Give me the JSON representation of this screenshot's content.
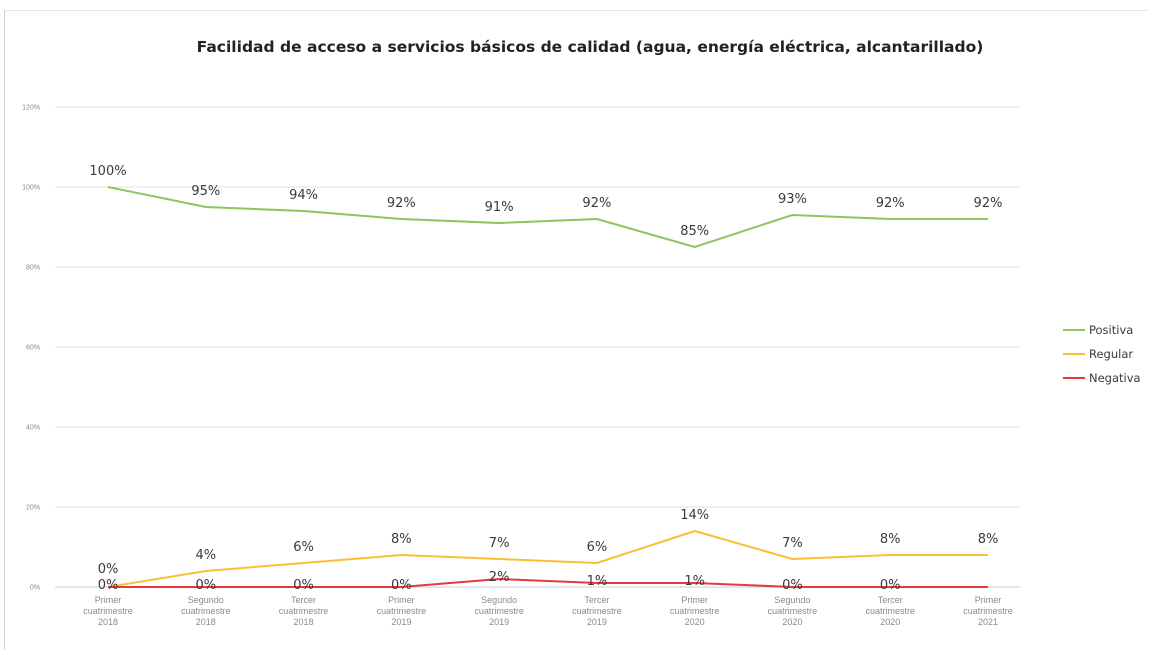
{
  "chart_data": {
    "type": "line",
    "title": "Facilidad de acceso a servicios básicos de calidad (agua, energía eléctrica, alcantarillado)",
    "categories": [
      [
        "Primer",
        "cuatrimestre",
        "2018"
      ],
      [
        "Segundo",
        "cuatrimestre",
        "2018"
      ],
      [
        "Tercer",
        "cuatrimestre",
        "2018"
      ],
      [
        "Primer",
        "cuatrimestre",
        "2019"
      ],
      [
        "Segundo",
        "cuatrimestre",
        "2019"
      ],
      [
        "Tercer",
        "cuatrimestre",
        "2019"
      ],
      [
        "Primer",
        "cuatrimestre",
        "2020"
      ],
      [
        "Segundo",
        "cuatrimestre",
        "2020"
      ],
      [
        "Tercer",
        "cuatrimestre",
        "2020"
      ],
      [
        "Primer",
        "cuatrimestre",
        "2021"
      ]
    ],
    "ylim": [
      0,
      120
    ],
    "yticks": [
      0,
      20,
      40,
      60,
      80,
      100,
      120
    ],
    "ytick_labels": [
      "0%",
      "20%",
      "40%",
      "60%",
      "80%",
      "100%",
      "120%"
    ],
    "grid": true,
    "legend_position": "right",
    "series": [
      {
        "name": "Positiva",
        "color": "#8dc65a",
        "values": [
          100,
          95,
          94,
          92,
          91,
          92,
          85,
          93,
          92,
          92
        ],
        "labels": [
          "100%",
          "95%",
          "94%",
          "92%",
          "91%",
          "92%",
          "85%",
          "93%",
          "92%",
          "92%"
        ]
      },
      {
        "name": "Regular",
        "color": "#f8c033",
        "values": [
          0,
          4,
          6,
          8,
          7,
          6,
          14,
          7,
          8,
          8
        ],
        "labels": [
          "0%",
          "4%",
          "6%",
          "8%",
          "7%",
          "6%",
          "14%",
          "7%",
          "8%",
          "8%"
        ]
      },
      {
        "name": "Negativa",
        "color": "#e8383d",
        "values": [
          0,
          0,
          0,
          0,
          2,
          1,
          1,
          0,
          0,
          0
        ],
        "labels": [
          "0%",
          "0%",
          "0%",
          "0%",
          "2%",
          "1%",
          "1%",
          "0%",
          "0%",
          ""
        ]
      }
    ]
  }
}
